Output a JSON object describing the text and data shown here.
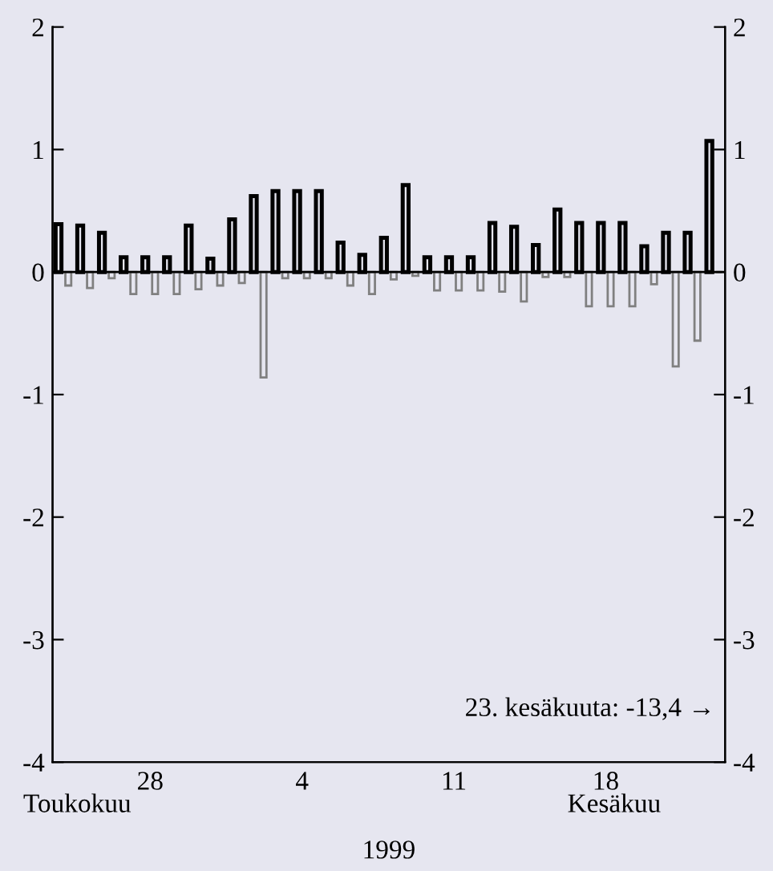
{
  "chart_data": {
    "type": "bar",
    "xlabel": "1999",
    "categories": [
      null,
      null,
      null,
      null,
      "28",
      null,
      null,
      null,
      null,
      null,
      null,
      "4",
      null,
      null,
      null,
      null,
      null,
      null,
      "11",
      null,
      null,
      null,
      null,
      null,
      null,
      "18",
      null,
      null,
      null,
      null,
      null
    ],
    "series": [
      {
        "color": "#000000",
        "values": [
          0.39,
          0.38,
          0.32,
          0.12,
          0.12,
          0.12,
          0.38,
          0.11,
          0.43,
          0.62,
          0.66,
          0.66,
          0.66,
          0.24,
          0.14,
          0.28,
          0.71,
          0.12,
          0.12,
          0.12,
          0.4,
          0.37,
          0.22,
          0.51,
          0.4,
          0.4,
          0.4,
          0.21,
          0.32,
          0.32,
          1.07
        ]
      },
      {
        "color": "#808080",
        "values": [
          -0.11,
          -0.13,
          -0.05,
          -0.18,
          -0.18,
          -0.18,
          -0.14,
          -0.11,
          -0.09,
          -0.86,
          -0.05,
          -0.05,
          -0.05,
          -0.11,
          -0.18,
          -0.06,
          -0.03,
          -0.15,
          -0.15,
          -0.15,
          -0.16,
          -0.24,
          -0.04,
          -0.04,
          -0.28,
          -0.28,
          -0.28,
          -0.1,
          -0.77,
          -0.56,
          null
        ]
      }
    ],
    "ylim": [
      -4,
      2
    ],
    "yticks": [
      -4,
      -3,
      -2,
      -1,
      0,
      1,
      2
    ],
    "y2lim": [
      -4,
      2
    ],
    "y2ticks": [
      -4,
      -3,
      -2,
      -1,
      0,
      1,
      2
    ],
    "annotations": [
      "23. kesäkuuta: -13,4 →",
      "Toukokuu",
      "Kesäkuu"
    ],
    "legend": false
  }
}
